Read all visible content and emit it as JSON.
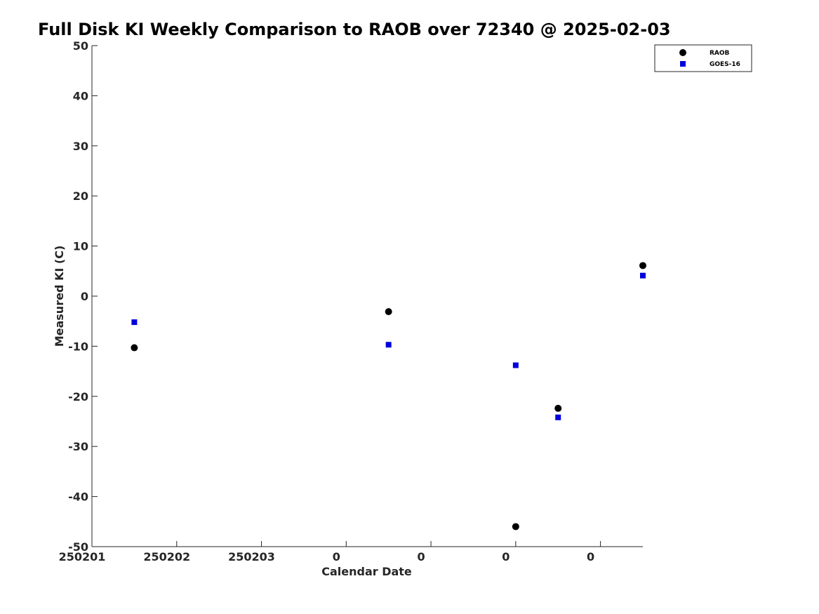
{
  "chart_data": {
    "type": "scatter",
    "title": "Full Disk KI Weekly Comparison to RAOB over 72340 @ 2025-02-03",
    "xlabel": "Calendar Date",
    "ylabel": "Measured KI (C)",
    "ylim": [
      -50,
      50
    ],
    "yticks": [
      -50,
      -40,
      -30,
      -20,
      -10,
      0,
      10,
      20,
      30,
      40,
      50
    ],
    "xlim": [
      0,
      6.5
    ],
    "xticks": [
      {
        "pos": 0,
        "label": "250201"
      },
      {
        "pos": 1,
        "label": "250202"
      },
      {
        "pos": 2,
        "label": "250203"
      },
      {
        "pos": 3,
        "label": "0"
      },
      {
        "pos": 4,
        "label": "0"
      },
      {
        "pos": 5,
        "label": "0"
      },
      {
        "pos": 6,
        "label": "0"
      }
    ],
    "grid": false,
    "legend_position": "top-right",
    "series": [
      {
        "name": "RAOB",
        "marker": "circle",
        "color": "#000000",
        "points": [
          {
            "x": 0.5,
            "y": -10.3
          },
          {
            "x": 3.5,
            "y": -3.1
          },
          {
            "x": 5.0,
            "y": -46.0
          },
          {
            "x": 5.5,
            "y": -22.4
          },
          {
            "x": 6.5,
            "y": 6.1
          }
        ]
      },
      {
        "name": "GOES-16",
        "marker": "square",
        "color": "#0000dd",
        "points": [
          {
            "x": 0.5,
            "y": -5.2
          },
          {
            "x": 3.5,
            "y": -9.7
          },
          {
            "x": 5.0,
            "y": -13.8
          },
          {
            "x": 5.5,
            "y": -24.2
          },
          {
            "x": 6.5,
            "y": 4.1
          }
        ]
      }
    ]
  }
}
